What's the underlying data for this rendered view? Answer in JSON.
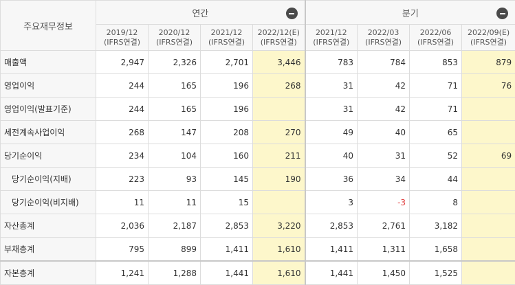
{
  "header": {
    "corner_label": "주요재무정보",
    "annual_label": "연간",
    "quarterly_label": "분기",
    "collapse_icon": "minus-circle-icon",
    "periods": [
      {
        "date": "2019/12",
        "basis": "(IFRS연결)"
      },
      {
        "date": "2020/12",
        "basis": "(IFRS연결)"
      },
      {
        "date": "2021/12",
        "basis": "(IFRS연결)"
      },
      {
        "date": "2022/12(E)",
        "basis": "(IFRS연결)"
      },
      {
        "date": "2021/12",
        "basis": "(IFRS연결)"
      },
      {
        "date": "2022/03",
        "basis": "(IFRS연결)"
      },
      {
        "date": "2022/06",
        "basis": "(IFRS연결)"
      },
      {
        "date": "2022/09(E)",
        "basis": "(IFRS연결)"
      }
    ]
  },
  "rows": [
    {
      "label": "매출액",
      "values": [
        "2,947",
        "2,326",
        "2,701",
        "3,446",
        "783",
        "784",
        "853",
        "879"
      ]
    },
    {
      "label": "영업이익",
      "values": [
        "244",
        "165",
        "196",
        "268",
        "31",
        "42",
        "71",
        "76"
      ]
    },
    {
      "label": "영업이익(발표기준)",
      "values": [
        "244",
        "165",
        "196",
        "",
        "31",
        "42",
        "71",
        ""
      ]
    },
    {
      "label": "세전계속사업이익",
      "values": [
        "268",
        "147",
        "208",
        "270",
        "49",
        "40",
        "65",
        ""
      ]
    },
    {
      "label": "당기순이익",
      "values": [
        "234",
        "104",
        "160",
        "211",
        "40",
        "31",
        "52",
        "69"
      ]
    },
    {
      "label": "당기순이익(지배)",
      "values": [
        "223",
        "93",
        "145",
        "190",
        "36",
        "34",
        "44",
        ""
      ]
    },
    {
      "label": "당기순이익(비지배)",
      "values": [
        "11",
        "11",
        "15",
        "",
        "3",
        "-3",
        "8",
        ""
      ]
    },
    {
      "label": "자산총계",
      "values": [
        "2,036",
        "2,187",
        "2,853",
        "3,220",
        "2,853",
        "2,761",
        "3,182",
        ""
      ]
    },
    {
      "label": "부채총계",
      "values": [
        "795",
        "899",
        "1,411",
        "1,610",
        "1,411",
        "1,311",
        "1,658",
        ""
      ]
    },
    {
      "label": "자본총계",
      "values": [
        "1,241",
        "1,288",
        "1,441",
        "1,610",
        "1,441",
        "1,450",
        "1,525",
        ""
      ]
    }
  ],
  "colors": {
    "estimate_highlight": "#fdf7cb",
    "negative": "#e03c3c",
    "header_bg": "#f7f7f7",
    "border": "#dcdcdc"
  }
}
